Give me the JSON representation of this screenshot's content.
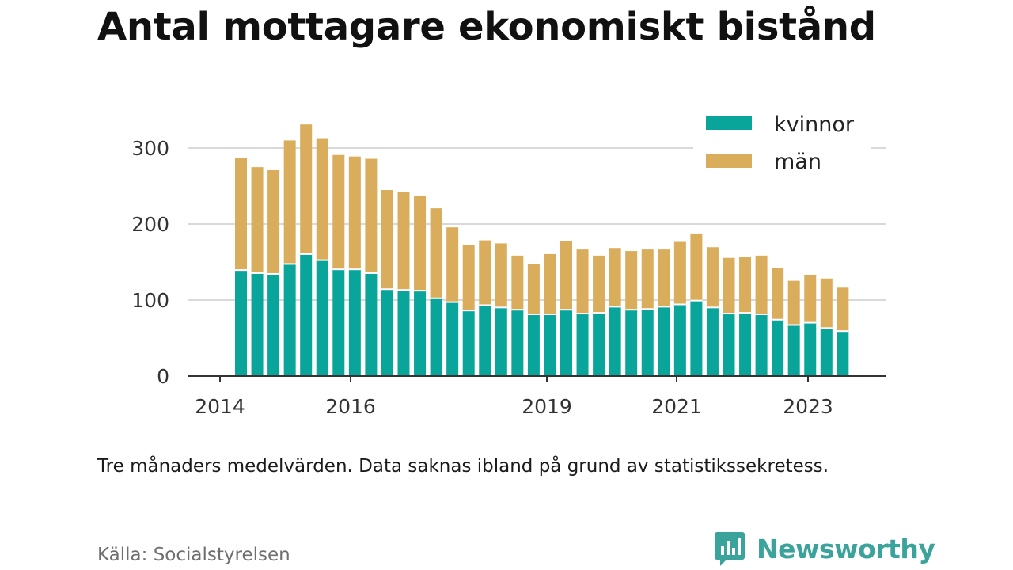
{
  "title": "Antal mottagare ekonomiskt bistånd",
  "note": "Tre månaders medelvärden. Data saknas ibland på grund av statistikssekretess.",
  "source": "Källa: Socialstyrelsen",
  "brand": "Newsworthy",
  "colors": {
    "kvinnor": "#0aa59a",
    "man": "#d9ad5b",
    "grid": "#d9d9d9",
    "axis": "#333333",
    "brand": "#3aa39b"
  },
  "chart_data": {
    "type": "bar",
    "stacked": true,
    "ylim": [
      0,
      330
    ],
    "yticks": [
      0,
      100,
      200,
      300
    ],
    "xtick_labels": [
      "2014",
      "2016",
      "2019",
      "2021",
      "2023"
    ],
    "grid": true,
    "legend_position": "top-right",
    "series": [
      {
        "name": "kvinnor",
        "values": [
          139,
          135,
          134,
          147,
          160,
          152,
          140,
          140,
          135,
          114,
          113,
          112,
          102,
          97,
          86,
          93,
          90,
          87,
          81,
          81,
          87,
          82,
          83,
          91,
          87,
          88,
          91,
          94,
          99,
          90,
          82,
          83,
          81,
          74,
          67,
          70,
          63,
          59
        ]
      },
      {
        "name": "män",
        "values": [
          147,
          139,
          136,
          162,
          170,
          160,
          150,
          148,
          150,
          130,
          128,
          124,
          118,
          98,
          86,
          85,
          84,
          71,
          66,
          79,
          90,
          84,
          75,
          77,
          77,
          78,
          75,
          82,
          88,
          79,
          73,
          73,
          77,
          68,
          58,
          63,
          65,
          57
        ]
      }
    ]
  }
}
